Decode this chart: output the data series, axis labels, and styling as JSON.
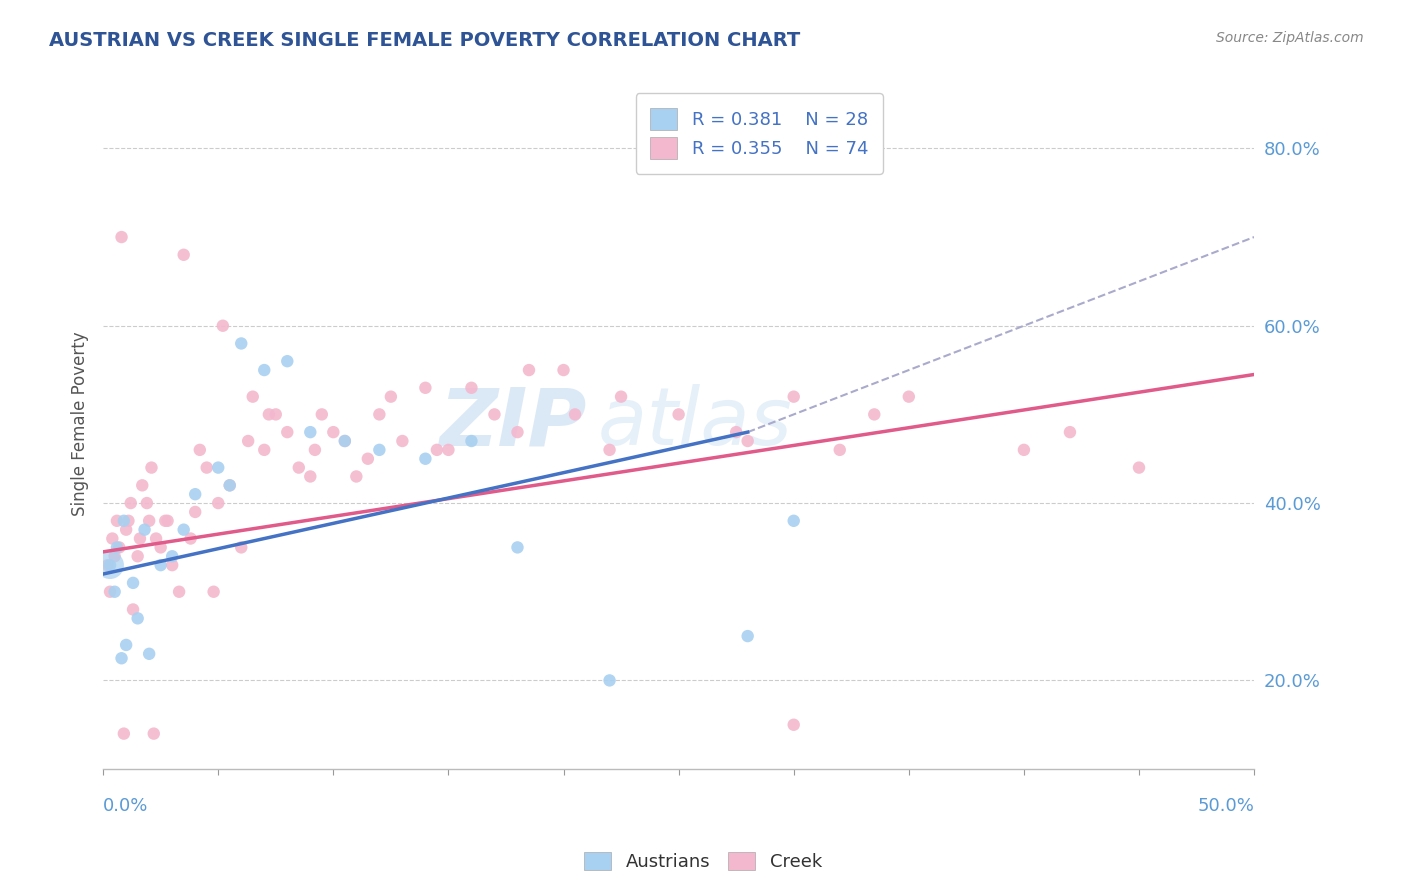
{
  "title": "AUSTRIAN VS CREEK SINGLE FEMALE POVERTY CORRELATION CHART",
  "source": "Source: ZipAtlas.com",
  "ylabel": "Single Female Poverty",
  "right_yticks": [
    20.0,
    40.0,
    60.0,
    80.0
  ],
  "xlim": [
    0.0,
    50.0
  ],
  "ylim": [
    10.0,
    88.0
  ],
  "watermark_zip": "ZIP",
  "watermark_atlas": "atlas",
  "legend_r_austrians": "0.381",
  "legend_n_austrians": "28",
  "legend_r_creek": "0.355",
  "legend_n_creek": "74",
  "austrians_color": "#a8d0f0",
  "creek_color": "#f4b8ce",
  "trend_austrians_color": "#4472c4",
  "trend_creek_color": "#e05a8a",
  "dashed_line_color": "#aaaacc",
  "austrians_x": [
    0.3,
    0.5,
    0.8,
    1.0,
    1.3,
    1.5,
    2.0,
    2.5,
    3.0,
    3.5,
    4.0,
    5.0,
    5.5,
    6.0,
    7.0,
    8.0,
    9.0,
    10.5,
    12.0,
    14.0,
    16.0,
    18.0,
    22.0,
    28.0,
    30.0,
    0.6,
    0.9,
    1.8
  ],
  "austrians_y": [
    33.0,
    30.0,
    22.5,
    24.0,
    31.0,
    27.0,
    23.0,
    33.0,
    34.0,
    37.0,
    41.0,
    44.0,
    42.0,
    58.0,
    55.0,
    56.0,
    48.0,
    47.0,
    46.0,
    45.0,
    47.0,
    35.0,
    20.0,
    25.0,
    38.0,
    35.0,
    38.0,
    37.0
  ],
  "austrians_sizes": [
    80,
    80,
    80,
    80,
    80,
    80,
    80,
    80,
    80,
    80,
    80,
    80,
    80,
    80,
    80,
    80,
    80,
    80,
    80,
    80,
    80,
    80,
    80,
    80,
    80,
    80,
    80,
    80
  ],
  "creek_x": [
    0.2,
    0.4,
    0.5,
    0.6,
    0.8,
    1.0,
    1.2,
    1.5,
    1.7,
    2.0,
    2.3,
    2.5,
    2.8,
    3.0,
    3.3,
    3.8,
    4.0,
    4.5,
    5.0,
    5.5,
    6.0,
    6.5,
    7.0,
    7.5,
    8.0,
    9.0,
    9.5,
    10.0,
    11.0,
    12.0,
    13.0,
    14.0,
    15.0,
    16.0,
    17.0,
    18.0,
    20.0,
    22.0,
    25.0,
    28.0,
    30.0,
    32.0,
    35.0,
    40.0,
    45.0,
    0.3,
    0.7,
    1.1,
    1.3,
    1.6,
    1.9,
    2.1,
    2.7,
    3.5,
    4.2,
    5.2,
    6.3,
    7.2,
    8.5,
    9.2,
    10.5,
    11.5,
    12.5,
    14.5,
    18.5,
    20.5,
    22.5,
    27.5,
    30.0,
    33.5,
    42.0,
    0.9,
    2.2,
    4.8
  ],
  "creek_y": [
    33.0,
    36.0,
    34.0,
    38.0,
    70.0,
    37.0,
    40.0,
    34.0,
    42.0,
    38.0,
    36.0,
    35.0,
    38.0,
    33.0,
    30.0,
    36.0,
    39.0,
    44.0,
    40.0,
    42.0,
    35.0,
    52.0,
    46.0,
    50.0,
    48.0,
    43.0,
    50.0,
    48.0,
    43.0,
    50.0,
    47.0,
    53.0,
    46.0,
    53.0,
    50.0,
    48.0,
    55.0,
    46.0,
    50.0,
    47.0,
    52.0,
    46.0,
    52.0,
    46.0,
    44.0,
    30.0,
    35.0,
    38.0,
    28.0,
    36.0,
    40.0,
    44.0,
    38.0,
    68.0,
    46.0,
    60.0,
    47.0,
    50.0,
    44.0,
    46.0,
    47.0,
    45.0,
    52.0,
    46.0,
    55.0,
    50.0,
    52.0,
    48.0,
    15.0,
    50.0,
    48.0,
    14.0,
    14.0,
    30.0
  ],
  "creek_sizes": [
    80,
    80,
    80,
    80,
    80,
    80,
    80,
    80,
    80,
    80,
    80,
    80,
    80,
    80,
    80,
    80,
    80,
    80,
    80,
    80,
    80,
    80,
    80,
    80,
    80,
    80,
    80,
    80,
    80,
    80,
    80,
    80,
    80,
    80,
    80,
    80,
    80,
    80,
    80,
    80,
    80,
    80,
    80,
    80,
    80,
    80,
    80,
    80,
    80,
    80,
    80,
    80,
    80,
    80,
    80,
    80,
    80,
    80,
    80,
    80,
    80,
    80,
    80,
    80,
    80,
    80,
    80,
    80,
    80,
    80,
    80,
    80,
    80,
    80
  ],
  "trend_blue_x0": 0.0,
  "trend_blue_y0": 32.0,
  "trend_blue_x1": 28.0,
  "trend_blue_y1": 48.0,
  "trend_pink_x0": 0.0,
  "trend_pink_y0": 34.5,
  "trend_pink_x1": 50.0,
  "trend_pink_y1": 54.5,
  "dash_x0": 28.0,
  "dash_y0": 48.0,
  "dash_x1": 50.0,
  "dash_y1": 70.0,
  "large_blue_x": 0.3,
  "large_blue_y": 33.0,
  "large_blue_size": 400
}
